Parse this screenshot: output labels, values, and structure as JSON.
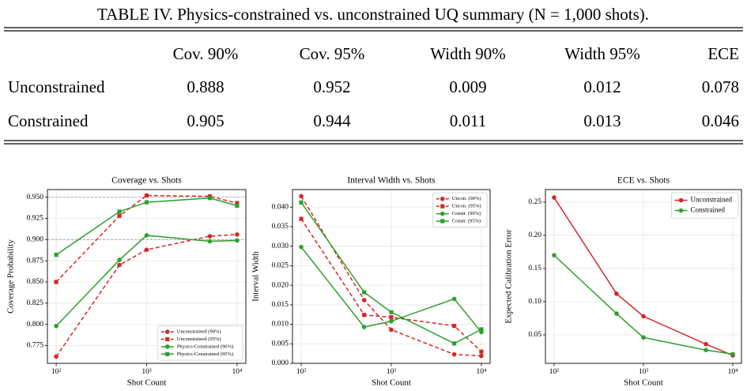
{
  "table": {
    "title": "TABLE IV. Physics-constrained vs. unconstrained UQ summary (N = 1,000 shots).",
    "columns": [
      "Cov. 90%",
      "Cov. 95%",
      "Width 90%",
      "Width 95%",
      "ECE"
    ],
    "rows": [
      {
        "label": "Unconstrained",
        "values": [
          "0.888",
          "0.952",
          "0.009",
          "0.012",
          "0.078"
        ]
      },
      {
        "label": "Constrained",
        "values": [
          "0.905",
          "0.944",
          "0.011",
          "0.013",
          "0.046"
        ]
      }
    ]
  },
  "chart_data": [
    {
      "type": "line",
      "title": "Coverage vs. Shots",
      "x_label": "Shot Count",
      "y_label": "Coverage Probability",
      "x": [
        100,
        500,
        1000,
        5000,
        10000
      ],
      "x_log": true,
      "xlim": [
        80,
        12500
      ],
      "xticks": [
        {
          "value": 100,
          "label": "10²"
        },
        {
          "value": 1000,
          "label": "10³"
        },
        {
          "value": 10000,
          "label": "10⁴"
        }
      ],
      "ylim": [
        0.754,
        0.959
      ],
      "yticks": [
        0.775,
        {
          "value": 0.8,
          "label": "0.800"
        },
        0.825,
        {
          "value": 0.85,
          "label": "0.850"
        },
        0.875,
        {
          "value": 0.9,
          "label": "0.900"
        },
        0.925,
        {
          "value": 0.95,
          "label": "0.950"
        }
      ],
      "grid": true,
      "legend": "lower right",
      "reference_lines": [
        0.9,
        0.95
      ],
      "series": [
        {
          "name": "Unconstrained (90%)",
          "color": "#d62728",
          "linestyle": "dashed",
          "marker": "circle",
          "values": [
            0.762,
            0.87,
            0.888,
            0.904,
            0.906
          ]
        },
        {
          "name": "Unconstrained (95%)",
          "color": "#d62728",
          "linestyle": "dashed",
          "marker": "square",
          "values": [
            0.85,
            0.928,
            0.952,
            0.951,
            0.943
          ]
        },
        {
          "name": "Physics-Constrained (90%)",
          "color": "#2ca02c",
          "linestyle": "solid",
          "marker": "circle",
          "values": [
            0.798,
            0.876,
            0.905,
            0.898,
            0.899
          ]
        },
        {
          "name": "Physics-Constrained (95%)",
          "color": "#2ca02c",
          "linestyle": "solid",
          "marker": "square",
          "values": [
            0.882,
            0.933,
            0.944,
            0.949,
            0.94
          ]
        }
      ]
    },
    {
      "type": "line",
      "title": "Interval Width vs. Shots",
      "x_label": "Shot Count",
      "y_label": "Interval Width",
      "x": [
        100,
        500,
        1000,
        5000,
        10000
      ],
      "x_log": true,
      "xlim": [
        80,
        12500
      ],
      "xticks": [
        {
          "value": 100,
          "label": "10²"
        },
        {
          "value": 1000,
          "label": "10³"
        },
        {
          "value": 10000,
          "label": "10⁴"
        }
      ],
      "ylim": [
        0,
        0.0445
      ],
      "yticks": [
        {
          "value": 0,
          "label": "0.000"
        },
        0.005,
        {
          "value": 0.01,
          "label": "0.010"
        },
        0.015,
        {
          "value": 0.02,
          "label": "0.020"
        },
        0.025,
        {
          "value": 0.03,
          "label": "0.030"
        },
        0.035,
        {
          "value": 0.04,
          "label": "0.040"
        }
      ],
      "grid": true,
      "legend": "upper right",
      "series": [
        {
          "name": "Uncon. (90%)",
          "color": "#d62728",
          "linestyle": "dashed",
          "marker": "circle",
          "values": [
            0.0428,
            0.0162,
            0.0086,
            0.0023,
            0.0019
          ]
        },
        {
          "name": "Uncon. (95%)",
          "color": "#d62728",
          "linestyle": "dashed",
          "marker": "square",
          "values": [
            0.037,
            0.0124,
            0.0118,
            0.0096,
            0.003
          ]
        },
        {
          "name": "Constr. (90%)",
          "color": "#2ca02c",
          "linestyle": "solid",
          "marker": "circle",
          "values": [
            0.0298,
            0.0093,
            0.0108,
            0.0165,
            0.008
          ]
        },
        {
          "name": "Constr. (95%)",
          "color": "#2ca02c",
          "linestyle": "solid",
          "marker": "square",
          "values": [
            0.0412,
            0.0182,
            0.0131,
            0.0051,
            0.0087
          ]
        }
      ]
    },
    {
      "type": "line",
      "title": "ECE vs. Shots",
      "x_label": "Shot Count",
      "y_label": "Expected Calibration Error",
      "x": [
        100,
        500,
        1000,
        5000,
        10000
      ],
      "x_log": true,
      "xlim": [
        80,
        12500
      ],
      "xticks": [
        {
          "value": 100,
          "label": "10²"
        },
        {
          "value": 1000,
          "label": "10³"
        },
        {
          "value": 10000,
          "label": "10⁴"
        }
      ],
      "ylim": [
        0.007,
        0.269
      ],
      "yticks": [
        0.05,
        {
          "value": 0.1,
          "label": "0.10"
        },
        0.15,
        {
          "value": 0.2,
          "label": "0.20"
        },
        0.25
      ],
      "grid": true,
      "legend": "upper right",
      "series": [
        {
          "name": "Unconstrained",
          "color": "#d62728",
          "linestyle": "solid",
          "marker": "circle",
          "values": [
            0.257,
            0.112,
            0.078,
            0.036,
            0.019
          ]
        },
        {
          "name": "Constrained",
          "color": "#2ca02c",
          "linestyle": "solid",
          "marker": "circle",
          "values": [
            0.17,
            0.082,
            0.046,
            0.027,
            0.021
          ]
        }
      ]
    }
  ]
}
